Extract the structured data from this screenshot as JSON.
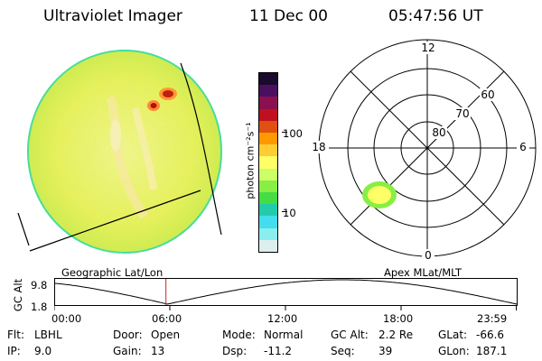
{
  "header": {
    "instrument": "Ultraviolet Imager",
    "date": "11 Dec 00",
    "time": "05:47:56 UT"
  },
  "colorbar": {
    "unit_label": "photon cm⁻²s⁻¹",
    "ticks": [
      "100",
      "10"
    ],
    "colors": [
      "#1a0a2e",
      "#4a1060",
      "#8a1050",
      "#c01020",
      "#e05010",
      "#ff9900",
      "#ffcc33",
      "#ffff66",
      "#ccff66",
      "#88ee44",
      "#44dd44",
      "#22ccaa",
      "#44ddee",
      "#88eeee",
      "#ddeeee"
    ]
  },
  "polar_plot": {
    "mlt_labels": {
      "top": "12",
      "left": "18",
      "right": "6",
      "bottom": "0"
    },
    "lat_labels": [
      "80",
      "70",
      "60"
    ]
  },
  "timeline": {
    "y_axis_title": "GC Alt",
    "y_max": "9.8",
    "y_min": "1.8",
    "left_title": "Geographic Lat/Lon",
    "right_title": "Apex MLat/MLT",
    "x_ticks": [
      "00:00",
      "06:00",
      "12:00",
      "18:00",
      "23:59"
    ],
    "current_fraction": 0.2416
  },
  "info": {
    "row1": [
      {
        "label": "Flt:",
        "value": "LBHL"
      },
      {
        "label": "Door:",
        "value": "Open"
      },
      {
        "label": "Mode:",
        "value": "Normal"
      },
      {
        "label": "GC Alt:",
        "value": "2.2 Re"
      },
      {
        "label": "GLat:",
        "value": "-66.6"
      }
    ],
    "row2": [
      {
        "label": "IP:",
        "value": "9.0"
      },
      {
        "label": "Gain:",
        "value": "13"
      },
      {
        "label": "Dsp:",
        "value": "-11.2"
      },
      {
        "label": "Seq:",
        "value": "39"
      },
      {
        "label": "GLon:",
        "value": "187.1"
      }
    ]
  }
}
